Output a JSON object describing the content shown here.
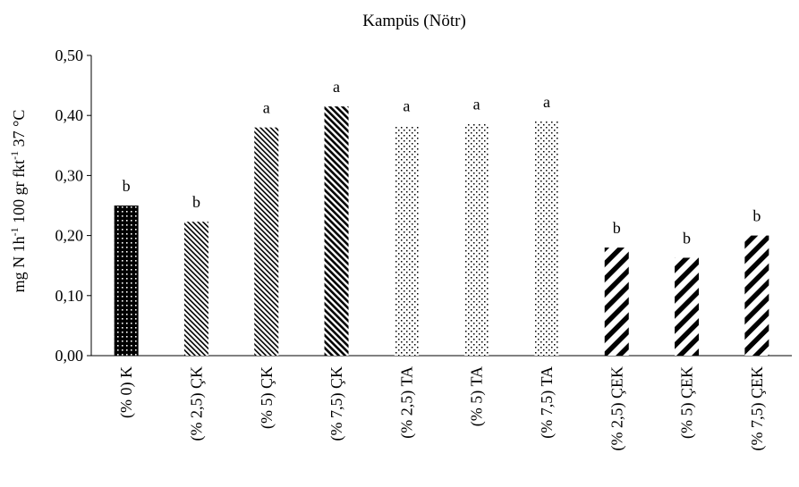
{
  "chart_data": {
    "type": "bar",
    "title": "Kampüs (Nötr)",
    "ylabel": "mg N 1h⁻¹ 100 gr fkt⁻¹ 37 °C",
    "ylabel_parts": [
      "mg N 1h",
      "-1",
      " 100 gr fkt",
      "-1",
      " 37 °C"
    ],
    "xlabel": "",
    "ylim": [
      0,
      0.5
    ],
    "y_ticks": [
      "0,00",
      "0,10",
      "0,20",
      "0,30",
      "0,40",
      "0,50"
    ],
    "y_tick_values": [
      0,
      0.1,
      0.2,
      0.3,
      0.4,
      0.5
    ],
    "grid": false,
    "categories": [
      "(% 0) K",
      "(% 2,5) ÇK",
      "(% 5) ÇK",
      "(% 7,5) ÇK",
      "(% 2,5) TA",
      "(% 5) TA",
      "(% 7,5) TA",
      "(% 2,5) ÇEK",
      "(% 5) ÇEK",
      "(% 7,5) ÇEK"
    ],
    "values": [
      0.25,
      0.223,
      0.38,
      0.415,
      0.383,
      0.386,
      0.39,
      0.18,
      0.163,
      0.2
    ],
    "data_labels": [
      "b",
      "b",
      "a",
      "a",
      "a",
      "a",
      "a",
      "b",
      "b",
      "b"
    ],
    "patterns": [
      "dense-dots",
      "fine-diagonal",
      "fine-diagonal",
      "medium-diagonal",
      "sparse-dots",
      "sparse-dots",
      "sparse-dots",
      "thick-diagonal",
      "thick-diagonal",
      "thick-diagonal"
    ],
    "colors": {
      "ink": "#000000",
      "background": "#ffffff"
    }
  }
}
